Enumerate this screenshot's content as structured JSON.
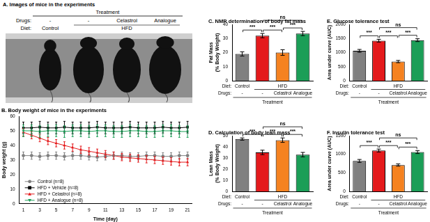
{
  "panel_a": {
    "title": "A. Images of mice in the experiments",
    "group_label": "Treatment",
    "drugs_label": "Drugs:",
    "drugs": [
      "-",
      "-",
      "Celastrol",
      "Analogue"
    ],
    "diet": {
      "label": "Diet:",
      "groups": [
        {
          "text": "Control",
          "span": 1
        },
        {
          "text": "HFD",
          "span": 3
        }
      ]
    }
  },
  "chart_data": [
    {
      "type": "line",
      "title": "B. Body weight of mice in the experiments",
      "xlabel": "Time (day)",
      "ylabel": "Body weight (g)",
      "x": [
        1,
        2,
        3,
        4,
        5,
        6,
        7,
        8,
        9,
        10,
        11,
        12,
        13,
        14,
        15,
        16,
        17,
        18,
        19,
        20,
        21
      ],
      "xlim": [
        0.5,
        21.5
      ],
      "xticks": [
        1,
        3,
        5,
        7,
        9,
        11,
        13,
        15,
        17,
        19,
        21
      ],
      "ylim": [
        0,
        60
      ],
      "yticks": [
        0,
        10,
        20,
        30,
        40,
        50,
        60
      ],
      "grid": false,
      "legend": "lower left",
      "series": [
        {
          "name": "Control (n=8)",
          "color": "#808080",
          "marker": "circle",
          "values": [
            33,
            33,
            32.5,
            33,
            33,
            32.5,
            33,
            33,
            32.5,
            32,
            32.5,
            33,
            33,
            32.5,
            32.5,
            33,
            33,
            32.5,
            32.5,
            33,
            33
          ],
          "errors": [
            2.5,
            2.5,
            2.5,
            2.5,
            2.5,
            2.5,
            2.5,
            2.5,
            2.5,
            2.5,
            2.5,
            2.5,
            2.5,
            2.5,
            2.5,
            2.5,
            2.5,
            2.5,
            2.5,
            2.5,
            2.5
          ]
        },
        {
          "name": "HFD + Vehicle (n=8)",
          "color": "#000000",
          "marker": "square",
          "values": [
            52,
            52,
            52.5,
            52,
            52,
            52.5,
            52,
            52,
            52,
            52.5,
            52,
            52,
            52,
            52.5,
            52,
            52,
            52,
            52.5,
            52,
            52,
            52.5
          ],
          "errors": [
            4,
            4,
            4,
            4,
            4,
            4,
            4,
            4,
            4,
            4,
            4,
            4,
            4,
            4,
            4,
            4,
            4,
            4,
            4,
            4,
            4
          ]
        },
        {
          "name": "HFD + Celastrol (n=8)",
          "color": "#e41a1c",
          "marker": "triangle",
          "values": [
            49,
            47,
            45,
            43,
            41.5,
            40,
            38.5,
            37,
            36,
            35,
            34,
            33,
            32,
            31.5,
            31,
            30.5,
            30,
            29.5,
            29,
            28.5,
            28.5
          ],
          "errors": [
            2.5,
            2.5,
            2.5,
            2.5,
            2.5,
            2.5,
            2.5,
            2.5,
            2.5,
            2.5,
            2.5,
            2.5,
            2.5,
            2.5,
            2.5,
            2.5,
            2.5,
            2.5,
            2.5,
            2.5,
            2.5
          ]
        },
        {
          "name": "HFD + Analogue (n=8)",
          "color": "#1b9e57",
          "marker": "triangle-down",
          "values": [
            50,
            50,
            49.5,
            50,
            50,
            49.5,
            50,
            50,
            49.5,
            50,
            50,
            49.5,
            49.5,
            50,
            50,
            49.5,
            49.5,
            50,
            50,
            49.5,
            49.5
          ],
          "errors": [
            4,
            4,
            4,
            4,
            4,
            4,
            4,
            4,
            4,
            4,
            4,
            4,
            4,
            4,
            4,
            4,
            4,
            4,
            4,
            4,
            4
          ]
        }
      ]
    },
    {
      "type": "bar",
      "title": "C. NMR determination of body fat mass",
      "ylabel": [
        "Fat Mass",
        "(% Body Weight)"
      ],
      "categories": [
        "-",
        "-",
        "Celastrol",
        "Analogue"
      ],
      "drugs_label": "Drugs:",
      "group_label": "Treatment",
      "diet": {
        "label": "Diet:",
        "groups": [
          {
            "text": "Control",
            "span": 1
          },
          {
            "text": "HFD",
            "span": 3
          }
        ]
      },
      "values": [
        19,
        32,
        20,
        33.5
      ],
      "errors": [
        1.5,
        1.5,
        2,
        1.5
      ],
      "colors": [
        "#808080",
        "#e41a1c",
        "#f58220",
        "#1b9e57"
      ],
      "ylim": [
        0,
        40
      ],
      "yticks": [
        0,
        10,
        20,
        30,
        40
      ],
      "grid": false,
      "significance": [
        {
          "from": 2,
          "to": 3,
          "text": "***"
        },
        {
          "from": 0,
          "to": 1,
          "text": "***"
        },
        {
          "from": 1,
          "to": 2,
          "text": "***"
        },
        {
          "from": 1,
          "to": 3,
          "text": "ns"
        }
      ]
    },
    {
      "type": "bar",
      "title": "D. Calculation of body lean mass",
      "ylabel": [
        "Lean Mass",
        "(% Body Weight)"
      ],
      "categories": [
        "-",
        "-",
        "Celastrol",
        "Analogue"
      ],
      "drugs_label": "Drugs:",
      "group_label": "Treatment",
      "diet": {
        "label": "Diet:",
        "groups": [
          {
            "text": "Control",
            "span": 1
          },
          {
            "text": "HFD",
            "span": 3
          }
        ]
      },
      "values": [
        47,
        35,
        46,
        33
      ],
      "errors": [
        1,
        2,
        2,
        2
      ],
      "colors": [
        "#808080",
        "#e41a1c",
        "#f58220",
        "#1b9e57"
      ],
      "ylim": [
        0,
        50
      ],
      "yticks": [
        0,
        10,
        20,
        30,
        40,
        50
      ],
      "grid": false,
      "significance": [
        {
          "from": 2,
          "to": 3,
          "text": "***"
        },
        {
          "from": 0,
          "to": 1,
          "text": "***"
        },
        {
          "from": 1,
          "to": 2,
          "text": "***"
        },
        {
          "from": 1,
          "to": 3,
          "text": "ns"
        }
      ]
    },
    {
      "type": "bar",
      "title": "E. Glucose tolerance test",
      "ylabel": "Area under curve (AUC)",
      "categories": [
        "-",
        "-",
        "Celastrol",
        "Analogue"
      ],
      "drugs_label": "Drugs:",
      "group_label": "Treatment",
      "diet": {
        "label": "Diet:",
        "groups": [
          {
            "text": "Control",
            "span": 1
          },
          {
            "text": "HFD",
            "span": 3
          }
        ]
      },
      "values": [
        1060,
        1420,
        680,
        1440
      ],
      "errors": [
        50,
        50,
        40,
        50
      ],
      "colors": [
        "#808080",
        "#e41a1c",
        "#f58220",
        "#1b9e57"
      ],
      "ylim": [
        0,
        2000
      ],
      "yticks": [
        0,
        500,
        1000,
        1500,
        2000
      ],
      "grid": false,
      "significance": [
        {
          "from": 2,
          "to": 3,
          "text": "***"
        },
        {
          "from": 0,
          "to": 1,
          "text": "***"
        },
        {
          "from": 1,
          "to": 2,
          "text": "***"
        },
        {
          "from": 1,
          "to": 3,
          "text": "ns"
        }
      ]
    },
    {
      "type": "bar",
      "title": "F. Insulin tolerance test",
      "ylabel": "Area under curve (AUC)",
      "categories": [
        "-",
        "-",
        "Celastrol",
        "Analogue"
      ],
      "drugs_label": "Drugs:",
      "group_label": "Treatment",
      "diet": {
        "label": "Diet:",
        "groups": [
          {
            "text": "Control",
            "span": 1
          },
          {
            "text": "HFD",
            "span": 3
          }
        ]
      },
      "values": [
        820,
        1100,
        710,
        1060
      ],
      "errors": [
        40,
        40,
        30,
        40
      ],
      "colors": [
        "#808080",
        "#e41a1c",
        "#f58220",
        "#1b9e57"
      ],
      "ylim": [
        0,
        1500
      ],
      "yticks": [
        0,
        500,
        1000,
        1500
      ],
      "grid": false,
      "significance": [
        {
          "from": 2,
          "to": 3,
          "text": "***"
        },
        {
          "from": 0,
          "to": 1,
          "text": "***"
        },
        {
          "from": 1,
          "to": 2,
          "text": "***"
        },
        {
          "from": 1,
          "to": 3,
          "text": "ns"
        }
      ]
    }
  ]
}
